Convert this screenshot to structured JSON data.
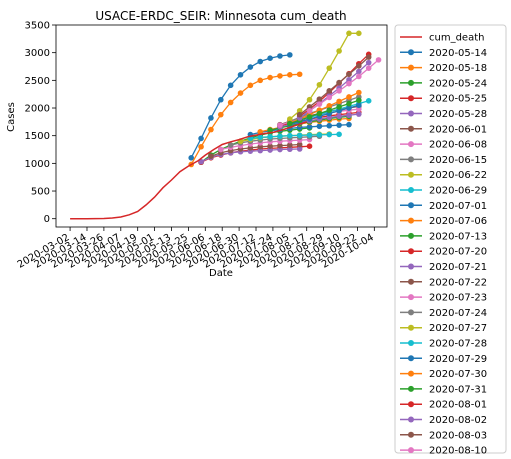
{
  "chart_data": {
    "type": "line",
    "title": "USACE-ERDC_SEIR: Minnesota cum_death",
    "xlabel": "Date",
    "ylabel": "Cases",
    "ylim": [
      -150,
      3500
    ],
    "yticks": [
      0,
      500,
      1000,
      1500,
      2000,
      2500,
      3000,
      3500
    ],
    "xlim": [
      "2020-02-21",
      "2020-10-13"
    ],
    "xticks": [
      "2020-03-02",
      "2020-03-14",
      "2020-03-26",
      "2020-04-07",
      "2020-04-19",
      "2020-05-01",
      "2020-05-13",
      "2020-05-25",
      "2020-06-06",
      "2020-06-18",
      "2020-06-30",
      "2020-07-12",
      "2020-07-24",
      "2020-08-05",
      "2020-08-17",
      "2020-08-29",
      "2020-09-10",
      "2020-09-22",
      "2020-10-04"
    ],
    "grid": false,
    "legend_position": "outside-right",
    "observed": {
      "name": "cum_death",
      "color": "#d62728",
      "points": [
        [
          "2020-03-02",
          0
        ],
        [
          "2020-03-14",
          0
        ],
        [
          "2020-03-20",
          1
        ],
        [
          "2020-03-26",
          3
        ],
        [
          "2020-04-01",
          12
        ],
        [
          "2020-04-07",
          30
        ],
        [
          "2020-04-13",
          70
        ],
        [
          "2020-04-19",
          130
        ],
        [
          "2020-04-25",
          250
        ],
        [
          "2020-05-01",
          390
        ],
        [
          "2020-05-07",
          560
        ],
        [
          "2020-05-13",
          700
        ],
        [
          "2020-05-19",
          850
        ],
        [
          "2020-05-25",
          950
        ],
        [
          "2020-06-01",
          1050
        ],
        [
          "2020-06-06",
          1150
        ],
        [
          "2020-06-12",
          1250
        ],
        [
          "2020-06-18",
          1340
        ],
        [
          "2020-06-24",
          1390
        ],
        [
          "2020-06-30",
          1430
        ],
        [
          "2020-07-06",
          1480
        ],
        [
          "2020-07-12",
          1510
        ],
        [
          "2020-07-18",
          1540
        ],
        [
          "2020-07-24",
          1560
        ],
        [
          "2020-07-30",
          1600
        ],
        [
          "2020-08-05",
          1650
        ],
        [
          "2020-08-11",
          1700
        ],
        [
          "2020-08-17",
          1750
        ]
      ]
    },
    "forecasts": [
      {
        "name": "2020-05-14",
        "color": "#1f77b4",
        "x": [
          "2020-05-27",
          "2020-06-03",
          "2020-06-10",
          "2020-06-17",
          "2020-06-24",
          "2020-07-01",
          "2020-07-08",
          "2020-07-15",
          "2020-07-22",
          "2020-07-29",
          "2020-08-05"
        ],
        "y": [
          1100,
          1450,
          1820,
          2150,
          2410,
          2600,
          2740,
          2840,
          2900,
          2940,
          2960
        ]
      },
      {
        "name": "2020-05-18",
        "color": "#ff7f0e",
        "x": [
          "2020-05-27",
          "2020-06-03",
          "2020-06-10",
          "2020-06-17",
          "2020-06-24",
          "2020-07-01",
          "2020-07-08",
          "2020-07-15",
          "2020-07-22",
          "2020-07-29",
          "2020-08-05",
          "2020-08-12"
        ],
        "y": [
          980,
          1300,
          1610,
          1880,
          2100,
          2270,
          2410,
          2500,
          2550,
          2580,
          2600,
          2610
        ]
      },
      {
        "name": "2020-05-24",
        "color": "#2ca02c",
        "x": [
          "2020-06-03",
          "2020-06-10",
          "2020-06-17",
          "2020-06-24",
          "2020-07-01",
          "2020-07-08",
          "2020-07-15",
          "2020-07-22",
          "2020-07-29",
          "2020-08-05",
          "2020-08-12",
          "2020-08-19"
        ],
        "y": [
          1020,
          1150,
          1250,
          1330,
          1400,
          1460,
          1510,
          1550,
          1580,
          1600,
          1620,
          1640
        ]
      },
      {
        "name": "2020-05-25",
        "color": "#d62728",
        "x": [
          "2020-06-03",
          "2020-06-10",
          "2020-06-17",
          "2020-06-24",
          "2020-07-01",
          "2020-07-08",
          "2020-07-15",
          "2020-07-22",
          "2020-07-29",
          "2020-08-05",
          "2020-08-12",
          "2020-08-19"
        ],
        "y": [
          1020,
          1100,
          1150,
          1190,
          1220,
          1240,
          1260,
          1270,
          1280,
          1290,
          1300,
          1310
        ]
      },
      {
        "name": "2020-05-28",
        "color": "#9467bd",
        "x": [
          "2020-06-03",
          "2020-06-10",
          "2020-06-17",
          "2020-06-24",
          "2020-07-01",
          "2020-07-08",
          "2020-07-15",
          "2020-07-22",
          "2020-07-29",
          "2020-08-05",
          "2020-08-12"
        ],
        "y": [
          1030,
          1110,
          1160,
          1190,
          1210,
          1220,
          1230,
          1240,
          1250,
          1255,
          1260
        ]
      },
      {
        "name": "2020-06-01",
        "color": "#8c564b",
        "x": [
          "2020-06-10",
          "2020-06-17",
          "2020-06-24",
          "2020-07-01",
          "2020-07-08",
          "2020-07-15",
          "2020-07-22",
          "2020-07-29",
          "2020-08-05",
          "2020-08-12"
        ],
        "y": [
          1130,
          1190,
          1230,
          1260,
          1280,
          1300,
          1310,
          1320,
          1330,
          1340
        ]
      },
      {
        "name": "2020-06-08",
        "color": "#e377c2",
        "x": [
          "2020-06-17",
          "2020-06-24",
          "2020-07-01",
          "2020-07-08",
          "2020-07-15",
          "2020-07-22",
          "2020-07-29",
          "2020-08-05",
          "2020-08-12",
          "2020-08-19"
        ],
        "y": [
          1250,
          1290,
          1320,
          1350,
          1370,
          1390,
          1400,
          1410,
          1420,
          1430
        ]
      },
      {
        "name": "2020-06-15",
        "color": "#7f7f7f",
        "x": [
          "2020-06-24",
          "2020-07-01",
          "2020-07-08",
          "2020-07-15",
          "2020-07-22",
          "2020-07-29",
          "2020-08-05",
          "2020-08-12",
          "2020-08-19",
          "2020-08-26"
        ],
        "y": [
          1330,
          1370,
          1400,
          1420,
          1440,
          1450,
          1460,
          1470,
          1480,
          1490
        ]
      },
      {
        "name": "2020-06-22",
        "color": "#bcbd22",
        "x": [
          "2020-07-01",
          "2020-07-08",
          "2020-07-15",
          "2020-07-22",
          "2020-07-29",
          "2020-08-05",
          "2020-08-12",
          "2020-08-19",
          "2020-08-26",
          "2020-09-02"
        ],
        "y": [
          1400,
          1430,
          1460,
          1480,
          1490,
          1500,
          1510,
          1520,
          1525,
          1530
        ]
      },
      {
        "name": "2020-06-29",
        "color": "#17becf",
        "x": [
          "2020-07-08",
          "2020-07-15",
          "2020-07-22",
          "2020-07-29",
          "2020-08-05",
          "2020-08-12",
          "2020-08-19",
          "2020-08-26",
          "2020-09-02",
          "2020-09-09"
        ],
        "y": [
          1450,
          1470,
          1480,
          1490,
          1500,
          1505,
          1510,
          1515,
          1520,
          1525
        ]
      },
      {
        "name": "2020-07-01",
        "color": "#1f77b4",
        "x": [
          "2020-07-08",
          "2020-07-15",
          "2020-07-22",
          "2020-07-29",
          "2020-08-05",
          "2020-08-12",
          "2020-08-19",
          "2020-08-26",
          "2020-09-02",
          "2020-09-09",
          "2020-09-16"
        ],
        "y": [
          1520,
          1560,
          1590,
          1610,
          1630,
          1650,
          1660,
          1670,
          1680,
          1690,
          1700
        ]
      },
      {
        "name": "2020-07-06",
        "color": "#ff7f0e",
        "x": [
          "2020-07-15",
          "2020-07-22",
          "2020-07-29",
          "2020-08-05",
          "2020-08-12",
          "2020-08-19",
          "2020-08-26",
          "2020-09-02",
          "2020-09-09",
          "2020-09-16"
        ],
        "y": [
          1570,
          1610,
          1650,
          1680,
          1710,
          1740,
          1760,
          1780,
          1800,
          1810
        ]
      },
      {
        "name": "2020-07-13",
        "color": "#2ca02c",
        "x": [
          "2020-07-22",
          "2020-07-29",
          "2020-08-05",
          "2020-08-12",
          "2020-08-19",
          "2020-08-26",
          "2020-09-02",
          "2020-09-09",
          "2020-09-16"
        ],
        "y": [
          1600,
          1640,
          1680,
          1720,
          1750,
          1780,
          1810,
          1830,
          1850
        ]
      },
      {
        "name": "2020-07-20",
        "color": "#d62728",
        "x": [
          "2020-07-29",
          "2020-08-05",
          "2020-08-12",
          "2020-08-19",
          "2020-08-26",
          "2020-09-02",
          "2020-09-09",
          "2020-09-16",
          "2020-09-23"
        ],
        "y": [
          1680,
          1720,
          1760,
          1800,
          1830,
          1860,
          1880,
          1900,
          1920
        ]
      },
      {
        "name": "2020-07-21",
        "color": "#9467bd",
        "x": [
          "2020-07-29",
          "2020-08-05",
          "2020-08-12",
          "2020-08-19",
          "2020-08-26",
          "2020-09-02",
          "2020-09-09",
          "2020-09-16",
          "2020-09-23"
        ],
        "y": [
          1660,
          1700,
          1740,
          1770,
          1800,
          1830,
          1850,
          1870,
          1890
        ]
      },
      {
        "name": "2020-07-22",
        "color": "#8c564b",
        "x": [
          "2020-07-29",
          "2020-08-05",
          "2020-08-12",
          "2020-08-19",
          "2020-08-26",
          "2020-09-02",
          "2020-09-09",
          "2020-09-16",
          "2020-09-23"
        ],
        "y": [
          1700,
          1760,
          1810,
          1860,
          1900,
          1940,
          1970,
          2000,
          2030
        ]
      },
      {
        "name": "2020-07-23",
        "color": "#e377c2",
        "x": [
          "2020-07-29",
          "2020-08-05",
          "2020-08-12",
          "2020-08-19",
          "2020-08-26",
          "2020-09-02",
          "2020-09-09",
          "2020-09-16",
          "2020-09-23"
        ],
        "y": [
          1690,
          1750,
          1800,
          1840,
          1880,
          1910,
          1940,
          1960,
          1980
        ]
      },
      {
        "name": "2020-07-24",
        "color": "#7f7f7f",
        "x": [
          "2020-08-05",
          "2020-08-12",
          "2020-08-19",
          "2020-08-26",
          "2020-09-02",
          "2020-09-09",
          "2020-09-16",
          "2020-09-23"
        ],
        "y": [
          1760,
          1830,
          1900,
          1960,
          2020,
          2080,
          2140,
          2200
        ]
      },
      {
        "name": "2020-07-27",
        "color": "#bcbd22",
        "x": [
          "2020-08-05",
          "2020-08-12",
          "2020-08-19",
          "2020-08-26",
          "2020-09-02",
          "2020-09-09",
          "2020-09-16",
          "2020-09-23"
        ],
        "y": [
          1800,
          1950,
          2150,
          2420,
          2720,
          3030,
          3350,
          3350
        ]
      },
      {
        "name": "2020-07-28",
        "color": "#17becf",
        "x": [
          "2020-08-05",
          "2020-08-12",
          "2020-08-19",
          "2020-08-26",
          "2020-09-02",
          "2020-09-09",
          "2020-09-16",
          "2020-09-23",
          "2020-09-30"
        ],
        "y": [
          1720,
          1780,
          1830,
          1880,
          1930,
          1980,
          2030,
          2080,
          2130
        ]
      },
      {
        "name": "2020-07-29",
        "color": "#1f77b4",
        "x": [
          "2020-08-05",
          "2020-08-12",
          "2020-08-19",
          "2020-08-26",
          "2020-09-02",
          "2020-09-09",
          "2020-09-16",
          "2020-09-23"
        ],
        "y": [
          1700,
          1750,
          1800,
          1850,
          1900,
          1950,
          2000,
          2050
        ]
      },
      {
        "name": "2020-07-30",
        "color": "#ff7f0e",
        "x": [
          "2020-08-05",
          "2020-08-12",
          "2020-08-19",
          "2020-08-26",
          "2020-09-02",
          "2020-09-09",
          "2020-09-16",
          "2020-09-23"
        ],
        "y": [
          1730,
          1800,
          1880,
          1960,
          2040,
          2120,
          2200,
          2280
        ]
      },
      {
        "name": "2020-07-31",
        "color": "#2ca02c",
        "x": [
          "2020-08-05",
          "2020-08-12",
          "2020-08-19",
          "2020-08-26",
          "2020-09-02",
          "2020-09-09",
          "2020-09-16",
          "2020-09-23"
        ],
        "y": [
          1720,
          1780,
          1840,
          1900,
          1960,
          2020,
          2080,
          2140
        ]
      },
      {
        "name": "2020-08-01",
        "color": "#d62728",
        "x": [
          "2020-08-12",
          "2020-08-19",
          "2020-08-26",
          "2020-09-02",
          "2020-09-09",
          "2020-09-16",
          "2020-09-23",
          "2020-09-30"
        ],
        "y": [
          1850,
          1980,
          2120,
          2280,
          2450,
          2620,
          2800,
          2970
        ]
      },
      {
        "name": "2020-08-02",
        "color": "#9467bd",
        "x": [
          "2020-08-12",
          "2020-08-19",
          "2020-08-26",
          "2020-09-02",
          "2020-09-09",
          "2020-09-16",
          "2020-09-23",
          "2020-09-30"
        ],
        "y": [
          1820,
          1950,
          2080,
          2220,
          2360,
          2510,
          2660,
          2820
        ]
      },
      {
        "name": "2020-08-03",
        "color": "#8c564b",
        "x": [
          "2020-08-12",
          "2020-08-19",
          "2020-08-26",
          "2020-09-02",
          "2020-09-09",
          "2020-09-16",
          "2020-09-23",
          "2020-09-30"
        ],
        "y": [
          1880,
          2020,
          2160,
          2310,
          2460,
          2610,
          2760,
          2920
        ]
      },
      {
        "name": "2020-08-10",
        "color": "#e377c2",
        "x": [
          "2020-08-19",
          "2020-08-26",
          "2020-09-02",
          "2020-09-09",
          "2020-09-16",
          "2020-09-23",
          "2020-09-30",
          "2020-10-07"
        ],
        "y": [
          1950,
          2070,
          2190,
          2310,
          2440,
          2570,
          2720,
          2870
        ]
      }
    ]
  }
}
